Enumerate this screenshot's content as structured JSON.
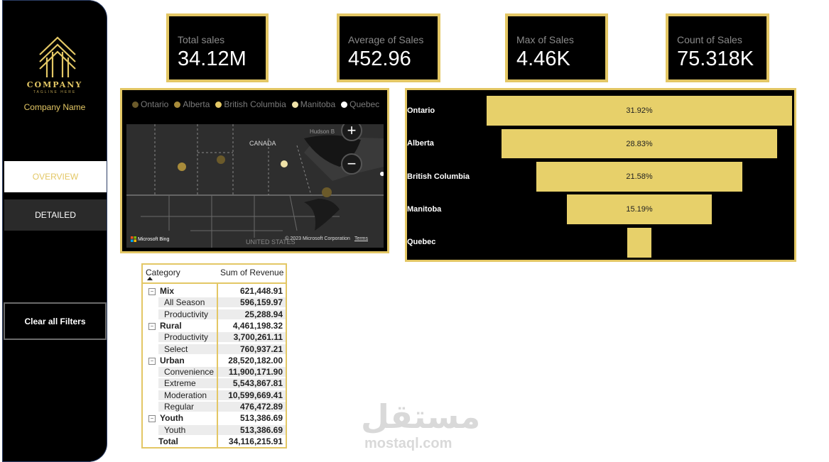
{
  "sidebar": {
    "company_logo_text": "COMPANY",
    "tagline": "TAGLINE HERE",
    "company_name": "Company Name",
    "nav": [
      {
        "label": "OVERVIEW",
        "active": true
      },
      {
        "label": "DETAILED",
        "active": false
      }
    ],
    "clear_filters_label": "Clear all Filters"
  },
  "kpis": [
    {
      "label": "Total sales",
      "value": "34.12M"
    },
    {
      "label": "Average of Sales",
      "value": "452.96"
    },
    {
      "label": "Max of Sales",
      "value": "4.46K"
    },
    {
      "label": "Count of Sales",
      "value": "75.318K"
    }
  ],
  "map": {
    "legend": [
      {
        "name": "Ontario",
        "color": "#6b5a2a"
      },
      {
        "name": "Alberta",
        "color": "#a88b3a"
      },
      {
        "name": "British Columbia",
        "color": "#e3c765"
      },
      {
        "name": "Manitoba",
        "color": "#efe2a8"
      },
      {
        "name": "Quebec",
        "color": "#ffffff"
      }
    ],
    "country_label": "CANADA",
    "bay_label": "Hudson B",
    "us_label": "UNITED STATES",
    "bing_label": "Microsoft Bing",
    "attribution": "© 2023 Microsoft Corporation",
    "terms": "Terms",
    "zoom_in": "+",
    "zoom_out": "−"
  },
  "funnel": {
    "rows": [
      {
        "label": "Ontario",
        "value_label": "31.92%",
        "share": 0.3192
      },
      {
        "label": "Alberta",
        "value_label": "28.83%",
        "share": 0.2883
      },
      {
        "label": "British Columbia",
        "value_label": "21.58%",
        "share": 0.2158
      },
      {
        "label": "Manitoba",
        "value_label": "15.19%",
        "share": 0.1519
      },
      {
        "label": "Quebec",
        "value_label": "",
        "share": 0.0248
      }
    ]
  },
  "table": {
    "headers": [
      "Category",
      "Sum of Revenue"
    ],
    "rows": [
      {
        "level": 0,
        "label": "Mix",
        "value": "621,448.91"
      },
      {
        "level": 1,
        "label": "All Season",
        "value": "596,159.97"
      },
      {
        "level": 1,
        "label": "Productivity",
        "value": "25,288.94"
      },
      {
        "level": 0,
        "label": "Rural",
        "value": "4,461,198.32"
      },
      {
        "level": 1,
        "label": "Productivity",
        "value": "3,700,261.11"
      },
      {
        "level": 1,
        "label": "Select",
        "value": "760,937.21"
      },
      {
        "level": 0,
        "label": "Urban",
        "value": "28,520,182.00"
      },
      {
        "level": 1,
        "label": "Convenience",
        "value": "11,900,171.90"
      },
      {
        "level": 1,
        "label": "Extreme",
        "value": "5,543,867.81"
      },
      {
        "level": 1,
        "label": "Moderation",
        "value": "10,599,669.41"
      },
      {
        "level": 1,
        "label": "Regular",
        "value": "476,472.89"
      },
      {
        "level": 0,
        "label": "Youth",
        "value": "513,386.69"
      },
      {
        "level": 1,
        "label": "Youth",
        "value": "513,386.69"
      },
      {
        "level": 2,
        "label": "Total",
        "value": "34,116,215.91"
      }
    ]
  },
  "watermark": {
    "arabic": "مستقل",
    "latin": "mostaql.com"
  }
}
